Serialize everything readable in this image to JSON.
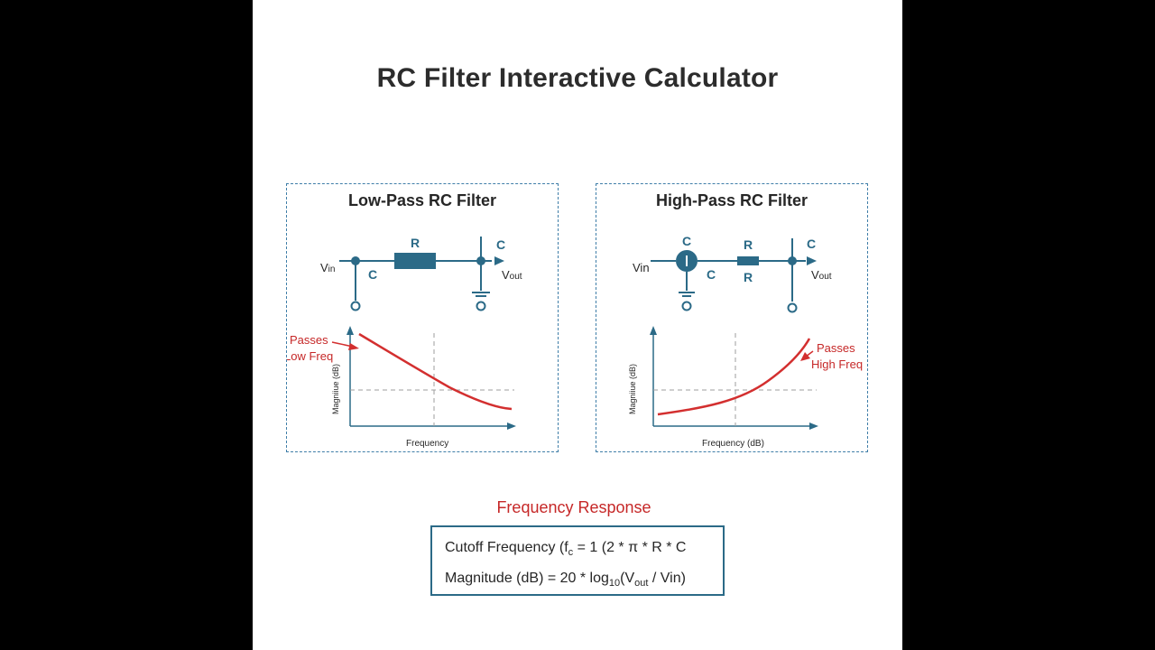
{
  "title": "RC Filter Interactive Calculator",
  "colors": {
    "circuit": "#2b6a87",
    "curve": "#d32f2f",
    "annotation": "#c62828",
    "text": "#262626"
  },
  "low_pass": {
    "title": "Low-Pass RC Filter",
    "circuit": {
      "vin": "V",
      "vin_sub": "in",
      "node_c": "C",
      "resistor": "R",
      "cap_top": "C",
      "vout": "V",
      "vout_sub": "out"
    },
    "graph": {
      "ylabel": "Magniiue (dB)",
      "xlabel": "Frequency",
      "annotation_line1": "Passes",
      "annotation_line2": "Low Freq"
    }
  },
  "high_pass": {
    "title": "High-Pass RC Filter",
    "circuit": {
      "vin": "Vin",
      "cap_top": "C",
      "cap_side": "C",
      "resistor_top": "R",
      "resistor_bottom": "R",
      "out_c": "C",
      "vout": "V",
      "vout_sub": "out"
    },
    "graph": {
      "ylabel": "Magniiue (dB)",
      "xlabel": "Frequency (dB)",
      "annotation_line1": "Passes",
      "annotation_line2": "High Freq"
    }
  },
  "response": {
    "title": "Frequency Response",
    "f1_part1": "Cutoff Frequency (f",
    "f1_sub": "c",
    "f1_part2": " = 1 (2 * π * R * C",
    "f2_part1": "Magnitude (dB) = 20 * log",
    "f2_sub1": "10",
    "f2_part2": "(V",
    "f2_sub2": "out",
    "f2_part3": " / Vin)"
  }
}
